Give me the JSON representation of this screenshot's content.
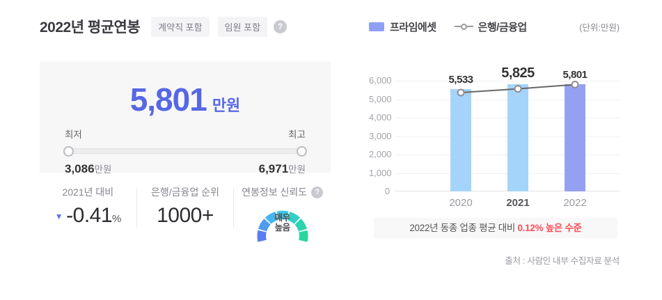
{
  "header": {
    "title": "2022년 평균연봉",
    "badges": [
      "계약직 포함",
      "임원 포함"
    ]
  },
  "icons": {
    "help_glyph": "?"
  },
  "salary_card": {
    "amount": "5,801",
    "amount_unit": "만원",
    "range": {
      "min_label": "최저",
      "max_label": "최고",
      "min_value": "3,086",
      "max_value": "6,971",
      "value_suffix": "만원"
    }
  },
  "stats": {
    "yoy": {
      "label": "2021년 대비",
      "direction": "down",
      "triangle_glyph": "▼",
      "value": "-0.41",
      "unit": "%"
    },
    "rank": {
      "label": "은행/금융업 순위",
      "value": "1000+"
    },
    "reliability": {
      "label": "연봉정보 신뢰도",
      "value": "매우높음",
      "value_line1": "매우",
      "value_line2": "높음",
      "gauge_colors": [
        "#5B7CF2",
        "#4F9BF0",
        "#45B6EE",
        "#3CC7E2",
        "#33CFC4",
        "#2DD3AE",
        "#28D69E"
      ]
    }
  },
  "chart_data": {
    "type": "bar",
    "categories": [
      "2020",
      "2021",
      "2022"
    ],
    "series": [
      {
        "name": "프라임에셋",
        "type": "bar",
        "values": [
          5533,
          5825,
          5801
        ],
        "bar_colors": [
          "#A5D4FB",
          "#A5D4FB",
          "#94A1F3"
        ]
      },
      {
        "name": "은행/금융업",
        "type": "line",
        "values": [
          5360,
          5560,
          5794
        ],
        "estimated": true,
        "line_color": "#666666",
        "marker_stroke": "#8f8f8f"
      }
    ],
    "unit_note": "(단위:만원)",
    "xlabel": "",
    "ylabel": "",
    "ylim": [
      0,
      6000
    ],
    "yticks": [
      0,
      1000,
      2000,
      3000,
      4000,
      5000,
      6000
    ],
    "grid": true,
    "legend_position": "top",
    "emphasis_category": "2021"
  },
  "note": {
    "text": "2022년 동종 업종 평균 대비 ",
    "highlight": "0.12% 높은 수준",
    "highlight_color": "#F94D56"
  },
  "source": "출처 : 사람인 내부 수집자료 분석",
  "colors": {
    "accent_blue": "#5667E4",
    "bar_light": "#A5D4FB",
    "bar_accent": "#94A1F3",
    "negative_triangle": "#5B74EE"
  }
}
